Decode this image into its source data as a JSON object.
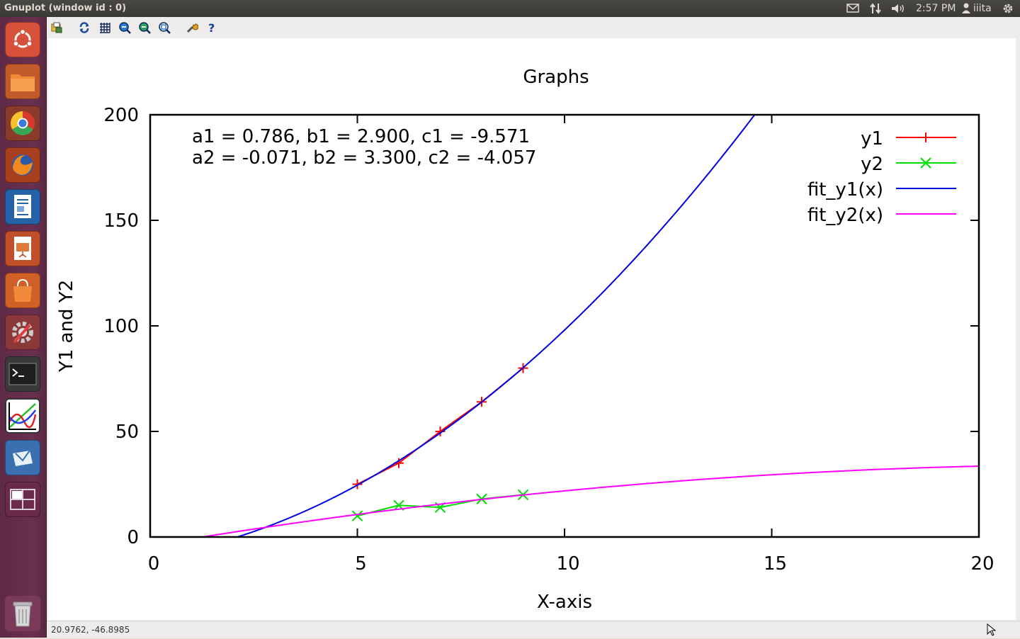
{
  "window": {
    "title": "Gnuplot (window id : 0)"
  },
  "panel": {
    "time": "2:57 PM",
    "user": "iiita",
    "icons": [
      "mail-icon",
      "network-icon",
      "volume-icon",
      "user-icon",
      "gear-icon"
    ]
  },
  "launcher": {
    "items": [
      {
        "name": "ubuntu-dash",
        "color": "#d0553a"
      },
      {
        "name": "files",
        "color": "#e8732a"
      },
      {
        "name": "chrome",
        "color": "#3c7dd8"
      },
      {
        "name": "firefox",
        "color": "#e66a1e"
      },
      {
        "name": "libreoffice-writer",
        "color": "#2a6cb0"
      },
      {
        "name": "libreoffice-impress",
        "color": "#d0602a"
      },
      {
        "name": "software-center",
        "color": "#e0702e"
      },
      {
        "name": "system-settings",
        "color": "#a64040"
      },
      {
        "name": "terminal",
        "color": "#2b2b2b"
      },
      {
        "name": "gnuplot",
        "color": "#f3f3f3"
      },
      {
        "name": "shutter",
        "color": "#3a70b0"
      },
      {
        "name": "workspace-switcher",
        "color": "#7a3a5a"
      },
      {
        "name": "trash",
        "color": "#9a9a9a"
      }
    ]
  },
  "toolbar": {
    "buttons": [
      "copy-to-clipboard",
      "replot",
      "grid",
      "zoom-previous",
      "zoom-next",
      "autoscale",
      "options",
      "help"
    ]
  },
  "status": {
    "coords": "20.9762, -46.8985"
  },
  "chart_data": {
    "type": "line",
    "title": "Graphs",
    "xlabel": "X-axis",
    "ylabel": "Y1 and Y2",
    "xlim": [
      0,
      20
    ],
    "ylim": [
      0,
      200
    ],
    "xticks": [
      "0",
      "5",
      "10",
      "15",
      "20"
    ],
    "yticks": [
      "0",
      "50",
      "100",
      "150",
      "200"
    ],
    "xtick_values": [
      0,
      5,
      10,
      15,
      20
    ],
    "ytick_values": [
      0,
      50,
      100,
      150,
      200
    ],
    "legend_position": "top-right",
    "annotations": [
      "a1 = 0.786, b1 = 2.900, c1 = -9.571",
      "a2 = -0.071, b2 = 3.300, c2 = -4.057"
    ],
    "series": [
      {
        "name": "y1",
        "color": "#ff0000",
        "marker": "plus",
        "x": [
          5,
          6,
          7,
          8,
          9
        ],
        "y": [
          25,
          35,
          50,
          64,
          80
        ]
      },
      {
        "name": "y2",
        "color": "#00dd00",
        "marker": "cross",
        "x": [
          5,
          6,
          7,
          8,
          9
        ],
        "y": [
          10,
          15,
          14,
          18,
          20
        ]
      },
      {
        "name": "fit_y1(x)",
        "color": "#0000e0",
        "function": "0.786*x^2 + 2.900*x - 9.571"
      },
      {
        "name": "fit_y2(x)",
        "color": "#ff00ff",
        "function": "-0.071*x^2 + 3.300*x - 4.057"
      }
    ]
  }
}
